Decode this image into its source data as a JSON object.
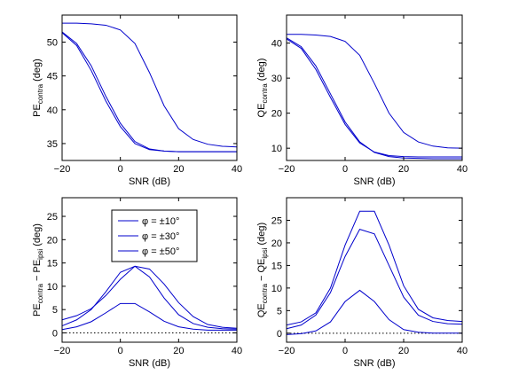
{
  "chart_data": [
    {
      "type": "line",
      "xlabel": "SNR (dB)",
      "ylabel": "PE",
      "ylabel_sub": "contra",
      "ylabel_unit": "(deg)",
      "xlim": [
        -20,
        40
      ],
      "ylim": [
        32.5,
        54
      ],
      "xticks": [
        -20,
        0,
        20,
        40
      ],
      "yticks": [
        35,
        40,
        45,
        50
      ],
      "x": [
        -20,
        -15,
        -10,
        -5,
        0,
        5,
        10,
        15,
        20,
        25,
        30,
        35,
        40
      ],
      "series": [
        {
          "values": [
            52.8,
            52.8,
            52.7,
            52.5,
            51.8,
            49.8,
            45.5,
            40.6,
            37.2,
            35.6,
            34.9,
            34.6,
            34.5
          ]
        },
        {
          "values": [
            51.5,
            49.8,
            46.5,
            42.0,
            38.0,
            35.3,
            34.2,
            33.9,
            33.8,
            33.8,
            33.8,
            33.8,
            33.8
          ]
        },
        {
          "values": [
            51.4,
            49.5,
            45.8,
            41.3,
            37.5,
            35.0,
            34.1,
            33.9,
            33.8,
            33.8,
            33.8,
            33.8,
            33.8
          ]
        }
      ],
      "zero_line": false,
      "color": "#0000cc"
    },
    {
      "type": "line",
      "xlabel": "SNR (dB)",
      "ylabel": "QE",
      "ylabel_sub": "contra",
      "ylabel_unit": "(deg)",
      "xlim": [
        -20,
        40
      ],
      "ylim": [
        6.5,
        48
      ],
      "xticks": [
        -20,
        0,
        20,
        40
      ],
      "yticks": [
        10,
        20,
        30,
        40
      ],
      "x": [
        -20,
        -15,
        -10,
        -5,
        0,
        5,
        10,
        15,
        20,
        25,
        30,
        35,
        40
      ],
      "series": [
        {
          "values": [
            42.5,
            42.5,
            42.3,
            41.9,
            40.5,
            36.5,
            28.5,
            20.0,
            14.5,
            11.8,
            10.6,
            10.1,
            10.0
          ]
        },
        {
          "values": [
            41.5,
            39.0,
            33.5,
            25.5,
            17.5,
            11.8,
            8.8,
            7.6,
            7.2,
            7.1,
            7.0,
            7.0,
            7.0
          ]
        },
        {
          "values": [
            41.2,
            38.5,
            32.5,
            24.5,
            16.8,
            11.5,
            8.9,
            7.9,
            7.6,
            7.5,
            7.5,
            7.5,
            7.5
          ]
        }
      ],
      "zero_line": false,
      "color": "#0000cc"
    },
    {
      "type": "line",
      "xlabel": "SNR (dB)",
      "ylabel": "PE",
      "ylabel_sub": "contra",
      "ylabel_mid": " − PE",
      "ylabel_sub2": "ipsi",
      "ylabel_unit": "(deg)",
      "xlim": [
        -20,
        40
      ],
      "ylim": [
        -2,
        29
      ],
      "xticks": [
        -20,
        0,
        20,
        40
      ],
      "yticks": [
        0,
        5,
        10,
        15,
        20,
        25
      ],
      "x": [
        -20,
        -15,
        -10,
        -5,
        0,
        5,
        10,
        15,
        20,
        25,
        30,
        35,
        40
      ],
      "series": [
        {
          "name": "φ = ±10°",
          "values": [
            0.7,
            1.3,
            2.4,
            4.3,
            6.3,
            6.3,
            4.5,
            2.5,
            1.3,
            0.8,
            0.6,
            0.6,
            0.6
          ]
        },
        {
          "name": "φ = ±30°",
          "values": [
            1.5,
            2.8,
            5.0,
            8.8,
            13.0,
            14.3,
            12.0,
            7.5,
            3.9,
            2.0,
            1.2,
            0.9,
            0.8
          ]
        },
        {
          "name": "φ = ±50°",
          "values": [
            2.8,
            3.7,
            5.2,
            8.0,
            11.5,
            14.3,
            13.7,
            10.5,
            6.5,
            3.5,
            1.8,
            1.2,
            1.0
          ]
        }
      ],
      "legend": {
        "placement": "upper-center"
      },
      "zero_line": true,
      "color": "#0000cc"
    },
    {
      "type": "line",
      "xlabel": "SNR (dB)",
      "ylabel": "QE",
      "ylabel_sub": "contra",
      "ylabel_mid": " − QE",
      "ylabel_sub2": "ipsi",
      "ylabel_unit": "(deg)",
      "xlim": [
        -20,
        40
      ],
      "ylim": [
        -2,
        30
      ],
      "xticks": [
        -20,
        0,
        20,
        40
      ],
      "yticks": [
        0,
        5,
        10,
        15,
        20,
        25
      ],
      "x": [
        -20,
        -15,
        -10,
        -5,
        0,
        5,
        10,
        15,
        20,
        25,
        30,
        35,
        40
      ],
      "series": [
        {
          "values": [
            -0.3,
            -0.1,
            0.5,
            2.5,
            7.0,
            9.5,
            7.0,
            3.0,
            0.8,
            0.2,
            0.0,
            0.0,
            0.0
          ]
        },
        {
          "values": [
            1.0,
            1.8,
            4.0,
            9.0,
            17.0,
            23.0,
            22.0,
            15.0,
            8.0,
            4.0,
            2.6,
            2.1,
            2.0
          ]
        },
        {
          "values": [
            1.8,
            2.5,
            4.5,
            10.0,
            19.5,
            27.0,
            27.0,
            19.5,
            10.5,
            5.3,
            3.4,
            2.8,
            2.6
          ]
        }
      ],
      "zero_line": true,
      "color": "#0000cc"
    }
  ]
}
